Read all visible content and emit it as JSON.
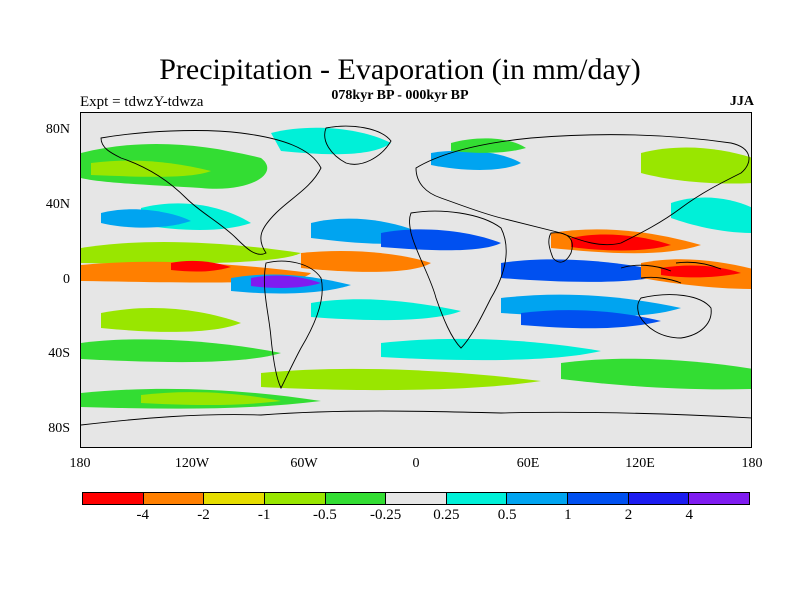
{
  "title": "Precipitation - Evaporation (in mm/day)",
  "subtitle": "078kyr BP - 000kyr BP",
  "left_label": "Expt = tdwzY-tdwza",
  "right_label": "JJA",
  "y_axis": [
    "80N",
    "40N",
    "0",
    "40S",
    "80S"
  ],
  "x_axis": [
    "180",
    "120W",
    "60W",
    "0",
    "60E",
    "120E",
    "180"
  ],
  "colorbar": {
    "colors": [
      "#ff0000",
      "#ff7f00",
      "#e6dd00",
      "#99e600",
      "#33dd33",
      "#e6e6e6",
      "#00f0d8",
      "#00a4f0",
      "#0050f0",
      "#1c1cf0",
      "#7f1cf0"
    ],
    "labels": [
      "-4",
      "-2",
      "-1",
      "-0.5",
      "-0.25",
      "0.25",
      "0.5",
      "1",
      "2",
      "4"
    ]
  },
  "map": {
    "background_color": "#e6e6e6",
    "coastline_color": "#000000"
  }
}
